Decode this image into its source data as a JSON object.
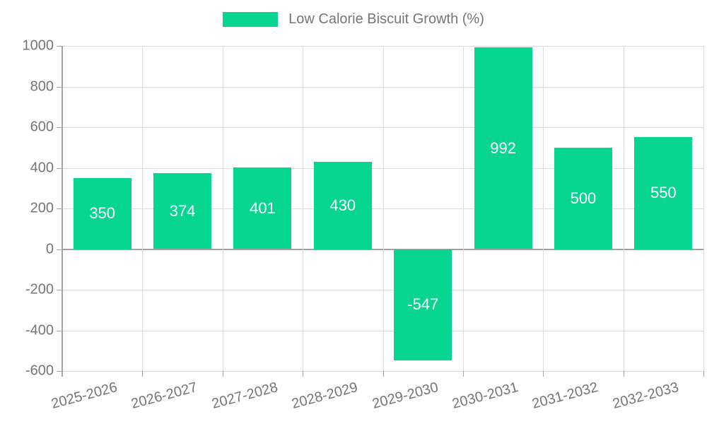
{
  "legend": {
    "label": "Low Calorie Biscuit Growth (%)"
  },
  "colors": {
    "bar": "#08d690",
    "text": "#757575",
    "grid": "#dcdcdc",
    "zero_line": "#a3a3a3",
    "axis": "#a3a3a3",
    "bar_label": "#ffffff"
  },
  "chart_data": {
    "type": "bar",
    "title": "Low Calorie Biscuit Growth (%)",
    "categories": [
      "2025-2026",
      "2026-2027",
      "2027-2028",
      "2028-2029",
      "2029-2030",
      "2030-2031",
      "2031-2032",
      "2032-2033"
    ],
    "values": [
      350,
      374,
      401,
      430,
      -547,
      992,
      500,
      550
    ],
    "xlabel": "",
    "ylabel": "",
    "ylim": [
      -600,
      1000
    ],
    "yticks": [
      1000,
      800,
      600,
      400,
      200,
      0,
      -200,
      -400,
      -600
    ],
    "x_label_rotation": -15,
    "grid": true,
    "legend_position": "top",
    "bar_labels_inside": true
  }
}
